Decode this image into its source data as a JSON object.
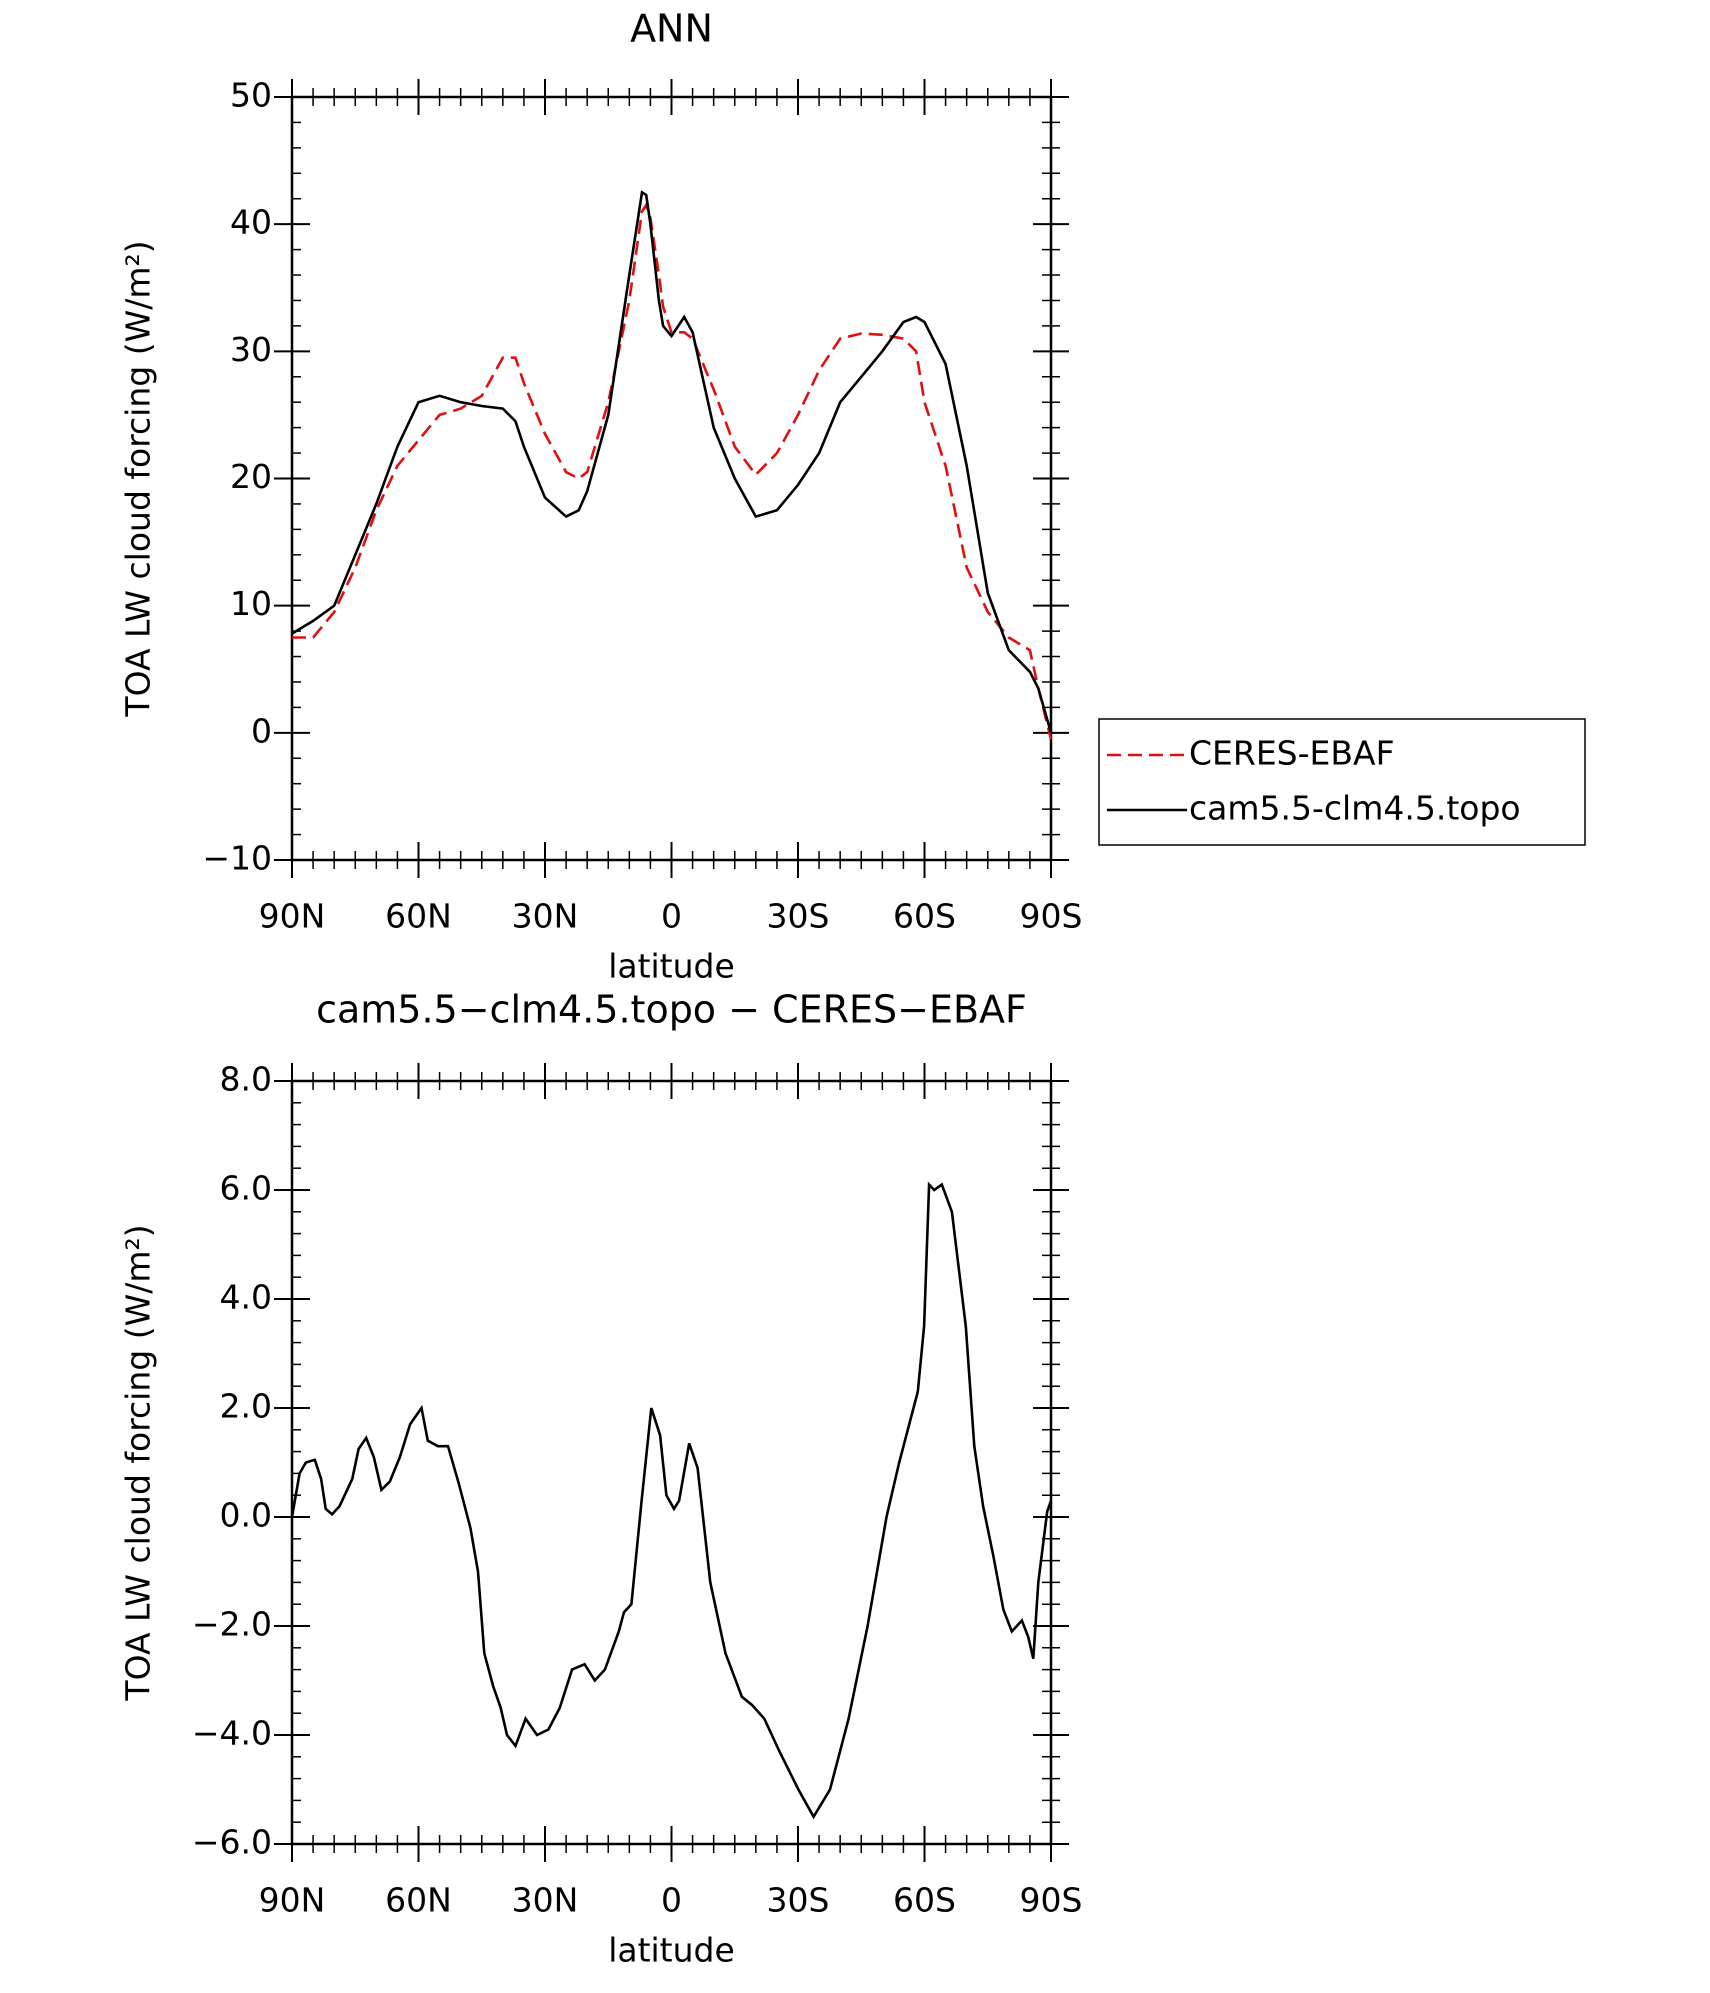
{
  "chart_data": [
    {
      "type": "line",
      "title": "ANN",
      "xlabel": "latitude",
      "ylabel": "TOA LW cloud forcing (W/m²)",
      "x": [
        90,
        85,
        80,
        75,
        70,
        65,
        60,
        55,
        50,
        45,
        40,
        37,
        35,
        30,
        25,
        22,
        20,
        15,
        10,
        7,
        6,
        5,
        3,
        2,
        0,
        -3,
        -5,
        -10,
        -15,
        -20,
        -25,
        -30,
        -35,
        -40,
        -45,
        -50,
        -55,
        -58,
        -60,
        -65,
        -70,
        -75,
        -80,
        -85,
        -87,
        -90
      ],
      "series": [
        {
          "name": "CERES-EBAF",
          "color": "#e01010",
          "line_style": "dashed",
          "values": [
            7.5,
            7.5,
            9.5,
            13,
            17.5,
            21,
            23,
            25,
            25.5,
            26.5,
            29.5,
            29.5,
            27.5,
            23.5,
            20.5,
            20,
            20.5,
            26,
            34,
            41,
            41.5,
            40.5,
            36,
            33.5,
            31.5,
            31.5,
            31,
            27,
            22.5,
            20.3,
            22,
            25,
            28.5,
            31,
            31.4,
            31.3,
            31,
            30,
            26,
            21,
            13,
            9.5,
            7.5,
            6.5,
            3.5,
            -0.5
          ]
        },
        {
          "name": "cam5.5-clm4.5.topo",
          "color": "#000000",
          "line_style": "solid",
          "values": [
            7.8,
            8.8,
            10,
            14,
            18,
            22.5,
            26,
            26.5,
            26,
            25.7,
            25.5,
            24.5,
            22.5,
            18.5,
            17,
            17.5,
            19,
            25,
            36,
            42.5,
            42.3,
            40,
            34,
            32,
            31.2,
            32.7,
            31.5,
            24,
            20,
            17,
            17.5,
            19.5,
            22,
            26,
            28,
            30,
            32.3,
            32.7,
            32.3,
            29,
            21,
            11,
            6.5,
            4.8,
            3.5,
            0
          ]
        }
      ],
      "xlim": [
        90,
        -90
      ],
      "xticks": [
        {
          "value": 90,
          "label": "90N"
        },
        {
          "value": 60,
          "label": "60N"
        },
        {
          "value": 30,
          "label": "30N"
        },
        0,
        {
          "value": -30,
          "label": "30S"
        },
        {
          "value": -60,
          "label": "60S"
        },
        {
          "value": -90,
          "label": "90S"
        }
      ],
      "ylim": [
        -10,
        50
      ],
      "yticks": [
        {
          "value": -10,
          "label": "−10"
        },
        0,
        10,
        20,
        30,
        40,
        50
      ],
      "legend": "outside-right"
    },
    {
      "type": "line",
      "title": "cam5.5−clm4.5.topo − CERES−EBAF",
      "xlabel": "latitude",
      "ylabel": "TOA LW cloud forcing (W/m²)",
      "x": [
        90,
        88.2,
        86.7,
        84.6,
        83.1,
        82,
        80.5,
        78.7,
        75.7,
        74.2,
        72.4,
        70.6,
        68.8,
        66.8,
        64.4,
        62,
        59.3,
        57.8,
        55.4,
        53,
        50.4,
        47.7,
        45.9,
        44.4,
        42.3,
        40.5,
        39,
        37,
        34.6,
        31.9,
        29.2,
        26.5,
        23.6,
        20.6,
        18.2,
        15.8,
        12.5,
        11.3,
        9.5,
        7.1,
        4.8,
        2.7,
        1.2,
        -0.6,
        -1.8,
        -4.2,
        -6.2,
        -9.2,
        -12.8,
        -16.7,
        -19.1,
        -22,
        -25.6,
        -30.1,
        -33.7,
        -37.6,
        -42,
        -46.5,
        -51,
        -54,
        -58.4,
        -59.9,
        -61.1,
        -62.3,
        -64.1,
        -66.5,
        -69.8,
        -71.8,
        -73.9,
        -76.3,
        -78.7,
        -80.7,
        -83.1,
        -84.6,
        -85.8,
        -87,
        -89.1,
        -90
      ],
      "color": "#000000",
      "values": [
        0,
        0.8,
        1,
        1.05,
        0.7,
        0.15,
        0.05,
        0.2,
        0.7,
        1.25,
        1.45,
        1.1,
        0.5,
        0.65,
        1.1,
        1.7,
        2,
        1.4,
        1.3,
        1.3,
        0.6,
        -0.2,
        -1,
        -2.5,
        -3.1,
        -3.5,
        -4,
        -4.2,
        -3.7,
        -4,
        -3.9,
        -3.5,
        -2.8,
        -2.7,
        -3,
        -2.8,
        -2.1,
        -1.75,
        -1.6,
        0.3,
        2,
        1.5,
        0.4,
        0.15,
        0.3,
        1.35,
        0.9,
        -1.2,
        -2.5,
        -3.3,
        -3.45,
        -3.7,
        -4.3,
        -5,
        -5.5,
        -5,
        -3.7,
        -2,
        0,
        1,
        2.3,
        3.5,
        6.1,
        6,
        6.1,
        5.6,
        3.5,
        1.3,
        0.2,
        -0.7,
        -1.7,
        -2.1,
        -1.9,
        -2.2,
        -2.6,
        -1.2,
        0.1,
        0.3
      ],
      "xlim": [
        90,
        -90
      ],
      "xticks": [
        {
          "value": 90,
          "label": "90N"
        },
        {
          "value": 60,
          "label": "60N"
        },
        {
          "value": 30,
          "label": "30N"
        },
        0,
        {
          "value": -30,
          "label": "30S"
        },
        {
          "value": -60,
          "label": "60S"
        },
        {
          "value": -90,
          "label": "90S"
        }
      ],
      "ylim": [
        -6,
        8
      ],
      "yticks": [
        {
          "value": -6,
          "label": "−6.0"
        },
        {
          "value": -4,
          "label": "−4.0"
        },
        {
          "value": -2,
          "label": "−2.0"
        },
        {
          "value": 0,
          "label": "0.0"
        },
        {
          "value": 2,
          "label": "2.0"
        },
        {
          "value": 4,
          "label": "4.0"
        },
        {
          "value": 6,
          "label": "6.0"
        },
        {
          "value": 8,
          "label": "8.0"
        }
      ]
    }
  ]
}
